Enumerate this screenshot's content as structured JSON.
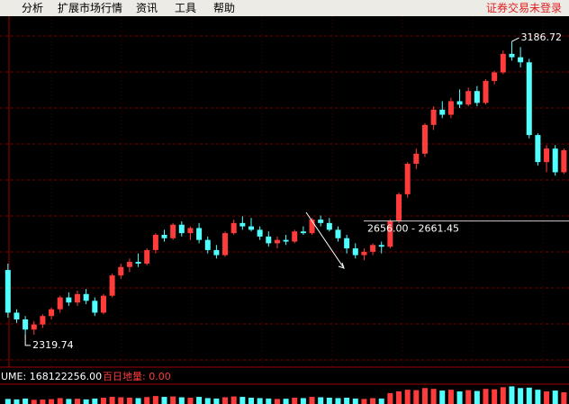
{
  "menu": {
    "items": [
      "分析",
      "扩展市场行情",
      "资讯",
      "工具",
      "帮助"
    ],
    "status": "证券交易未登录"
  },
  "chart_data": {
    "type": "candlestick",
    "ohlc": [
      [
        2511,
        2530,
        2370,
        2385
      ],
      [
        2385,
        2395,
        2355,
        2365
      ],
      [
        2365,
        2375,
        2320,
        2335
      ],
      [
        2335,
        2360,
        2320,
        2350
      ],
      [
        2350,
        2380,
        2340,
        2375
      ],
      [
        2375,
        2400,
        2365,
        2395
      ],
      [
        2395,
        2435,
        2385,
        2430
      ],
      [
        2430,
        2445,
        2405,
        2415
      ],
      [
        2415,
        2450,
        2405,
        2440
      ],
      [
        2440,
        2455,
        2410,
        2420
      ],
      [
        2420,
        2430,
        2375,
        2385
      ],
      [
        2385,
        2440,
        2380,
        2435
      ],
      [
        2435,
        2500,
        2430,
        2495
      ],
      [
        2495,
        2530,
        2485,
        2520
      ],
      [
        2520,
        2545,
        2505,
        2535
      ],
      [
        2535,
        2560,
        2520,
        2530
      ],
      [
        2530,
        2575,
        2525,
        2570
      ],
      [
        2570,
        2620,
        2560,
        2615
      ],
      [
        2615,
        2630,
        2595,
        2605
      ],
      [
        2605,
        2650,
        2600,
        2645
      ],
      [
        2645,
        2655,
        2610,
        2620
      ],
      [
        2620,
        2640,
        2600,
        2635
      ],
      [
        2635,
        2650,
        2590,
        2600
      ],
      [
        2600,
        2610,
        2560,
        2570
      ],
      [
        2570,
        2585,
        2545,
        2555
      ],
      [
        2555,
        2625,
        2550,
        2620
      ],
      [
        2620,
        2660,
        2615,
        2650
      ],
      [
        2650,
        2670,
        2630,
        2640
      ],
      [
        2640,
        2665,
        2625,
        2630
      ],
      [
        2630,
        2640,
        2600,
        2610
      ],
      [
        2610,
        2625,
        2580,
        2590
      ],
      [
        2590,
        2610,
        2575,
        2600
      ],
      [
        2600,
        2615,
        2585,
        2595
      ],
      [
        2595,
        2630,
        2590,
        2625
      ],
      [
        2625,
        2640,
        2615,
        2620
      ],
      [
        2620,
        2665,
        2615,
        2660
      ],
      [
        2660,
        2672,
        2640,
        2650
      ],
      [
        2650,
        2665,
        2625,
        2630
      ],
      [
        2630,
        2640,
        2595,
        2605
      ],
      [
        2605,
        2615,
        2560,
        2575
      ],
      [
        2575,
        2590,
        2545,
        2555
      ],
      [
        2555,
        2575,
        2540,
        2565
      ],
      [
        2565,
        2590,
        2555,
        2585
      ],
      [
        2585,
        2595,
        2560,
        2580
      ],
      [
        2580,
        2661,
        2575,
        2656
      ],
      [
        2656,
        2740,
        2650,
        2735
      ],
      [
        2735,
        2830,
        2725,
        2825
      ],
      [
        2825,
        2870,
        2810,
        2855
      ],
      [
        2855,
        2945,
        2845,
        2940
      ],
      [
        2940,
        2995,
        2925,
        2985
      ],
      [
        2985,
        3010,
        2960,
        2970
      ],
      [
        2970,
        3020,
        2960,
        3010
      ],
      [
        3010,
        3045,
        2990,
        3000
      ],
      [
        3000,
        3050,
        2995,
        3040
      ],
      [
        3040,
        3055,
        2995,
        3005
      ],
      [
        3005,
        3075,
        3000,
        3070
      ],
      [
        3070,
        3100,
        3060,
        3095
      ],
      [
        3095,
        3160,
        3090,
        3150
      ],
      [
        3150,
        3186.72,
        3130,
        3140
      ],
      [
        3140,
        3170,
        3110,
        3125
      ],
      [
        3125,
        3135,
        2900,
        2910
      ],
      [
        2910,
        2915,
        2820,
        2830
      ],
      [
        2830,
        2880,
        2800,
        2870
      ],
      [
        2870,
        2880,
        2790,
        2800
      ],
      [
        2800,
        2870,
        2795,
        2865
      ]
    ],
    "volume": [
      120000000,
      110000000,
      130000000,
      100000000,
      105000000,
      115000000,
      140000000,
      120000000,
      125000000,
      110000000,
      130000000,
      150000000,
      170000000,
      160000000,
      150000000,
      140000000,
      165000000,
      190000000,
      170000000,
      180000000,
      160000000,
      150000000,
      170000000,
      140000000,
      130000000,
      160000000,
      180000000,
      170000000,
      150000000,
      140000000,
      130000000,
      120000000,
      125000000,
      150000000,
      140000000,
      170000000,
      160000000,
      150000000,
      140000000,
      150000000,
      130000000,
      120000000,
      140000000,
      130000000,
      260000000,
      300000000,
      340000000,
      330000000,
      380000000,
      360000000,
      320000000,
      340000000,
      300000000,
      330000000,
      310000000,
      360000000,
      350000000,
      400000000,
      420000000,
      380000000,
      390000000,
      340000000,
      300000000,
      320000000,
      280000000
    ],
    "ylim": [
      2224,
      3256
    ],
    "volume_ylim": [
      0,
      450000000
    ],
    "up_color": "#ff3c3c",
    "down_color": "#52ffff",
    "high_label": "3186.72",
    "low_label": "2319.74",
    "range_label": "2656.00 - 2661.45",
    "range_level": 2656,
    "volume_label": "UME: 168122256.00",
    "min_volume_label": "百日地量: 0.00"
  }
}
